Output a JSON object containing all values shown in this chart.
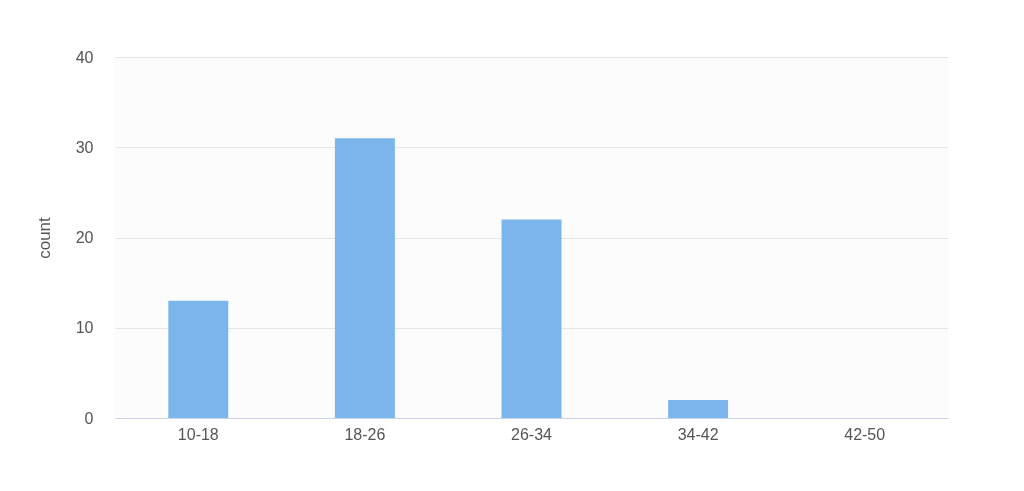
{
  "chart_data": {
    "type": "bar",
    "ylabel": "count",
    "categories": [
      "10-18",
      "18-26",
      "26-34",
      "34-42",
      "42-50"
    ],
    "values": [
      13,
      31,
      22,
      2,
      0
    ],
    "color": "#7cb5ec",
    "ylim": [
      0,
      40
    ],
    "yticks": [
      0,
      10,
      20,
      30,
      40
    ],
    "grid": "y"
  }
}
